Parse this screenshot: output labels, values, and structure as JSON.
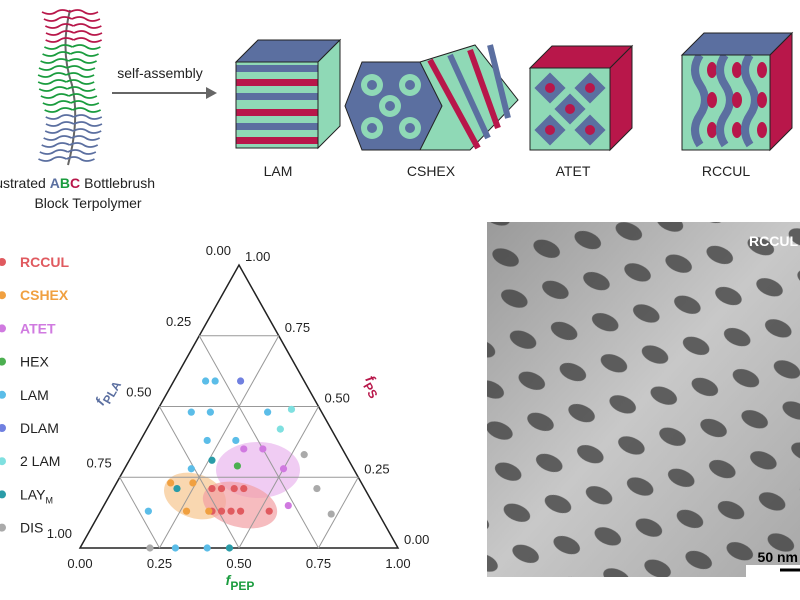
{
  "schematic": {
    "molecule_label_parts": [
      "Illustrated",
      "A",
      "B",
      "C",
      "Bottlebrush"
    ],
    "molecule_label_line2": "Block Terpolymer",
    "arrow_label": "self-assembly",
    "morphologies": [
      "LAM",
      "CSHEX",
      "ATET",
      "RCCUL"
    ]
  },
  "chart_data": {
    "type": "ternary",
    "axes": {
      "bottom": {
        "symbol": "f",
        "subscript": "PEP",
        "color": "#1a9c3e"
      },
      "right": {
        "symbol": "f",
        "subscript": "PS",
        "color": "#b8174a"
      },
      "left": {
        "symbol": "f",
        "subscript": "PLA",
        "color": "#5b6fa0"
      }
    },
    "xticks": [
      {
        "value": 0,
        "label": "0.00"
      },
      {
        "value": 0.25,
        "label": "0.25"
      },
      {
        "value": 0.5,
        "label": "0.50"
      },
      {
        "value": 0.75,
        "label": "0.75"
      },
      {
        "value": 1,
        "label": "1.00"
      }
    ],
    "yticks": [
      {
        "value": 0,
        "label": "0.00"
      },
      {
        "value": 0.25,
        "label": "0.25"
      },
      {
        "value": 0.5,
        "label": "0.50"
      },
      {
        "value": 0.75,
        "label": "0.75"
      },
      {
        "value": 1,
        "label": "1.00"
      }
    ],
    "zticks": [
      {
        "value": 0,
        "label": "0.00"
      },
      {
        "value": 0.25,
        "label": "0.25"
      },
      {
        "value": 0.5,
        "label": "0.50"
      },
      {
        "value": 0.75,
        "label": "0.75"
      },
      {
        "value": 1,
        "label": "1.00"
      }
    ],
    "series": [
      {
        "name": "RCCUL",
        "color": "#e05a5f",
        "x": [
          0.31,
          0.34,
          0.38,
          0.41,
          0.35,
          0.38,
          0.41,
          0.44,
          0.53
        ],
        "values": [
          0.21,
          0.21,
          0.21,
          0.21,
          0.13,
          0.13,
          0.13,
          0.13,
          0.13
        ]
      },
      {
        "name": "CSHEX",
        "color": "#f0a040",
        "x": [
          0.17,
          0.24,
          0.27,
          0.34
        ],
        "values": [
          0.23,
          0.23,
          0.13,
          0.13
        ]
      },
      {
        "name": "ATET",
        "color": "#d07ae0",
        "x": [
          0.34,
          0.4,
          0.5,
          0.58
        ],
        "values": [
          0.35,
          0.35,
          0.28,
          0.15
        ]
      },
      {
        "name": "HEX",
        "color": "#4caf50",
        "x": [
          0.35
        ],
        "values": [
          0.29
        ]
      },
      {
        "name": "LAM",
        "color": "#5bbde8",
        "x": [
          0.1,
          0.13,
          0.11,
          0.17,
          0.35,
          0.21,
          0.3,
          0.21,
          0.15,
          0.3,
          0.4
        ],
        "values": [
          0.59,
          0.59,
          0.48,
          0.48,
          0.48,
          0.38,
          0.38,
          0.28,
          0.13,
          0,
          0
        ]
      },
      {
        "name": "DLAM",
        "color": "#7080e0",
        "x": [
          0.21
        ],
        "values": [
          0.59
        ]
      },
      {
        "name": "2 LAM",
        "color": "#7fe0e0",
        "x": [
          0.42,
          0.42
        ],
        "values": [
          0.49,
          0.42
        ]
      },
      {
        "name": "LAY",
        "name_subscript": "M",
        "color": "#2a9ca8",
        "x": [
          0.26,
          0.2,
          0.47
        ],
        "values": [
          0.31,
          0.21,
          0
        ]
      },
      {
        "name": "DIS",
        "color": "#aaaaaa",
        "x": [
          0.54,
          0.64,
          0.73,
          0.22
        ],
        "values": [
          0.33,
          0.21,
          0.12,
          0
        ]
      }
    ]
  },
  "micrograph": {
    "label": "RCCUL",
    "scale_bar": "50 nm"
  }
}
